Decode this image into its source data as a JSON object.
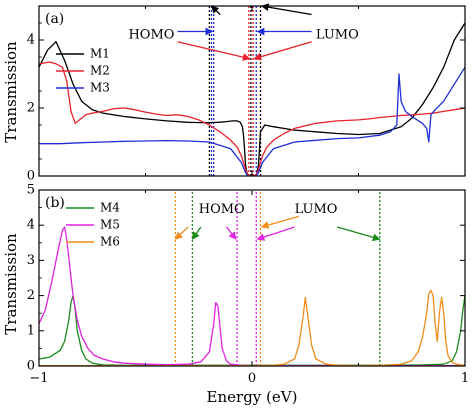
{
  "chart_data": [
    {
      "panel": "(a)",
      "type": "line",
      "xlabel": "",
      "ylabel": "Transmission",
      "xlim": [
        -1,
        1
      ],
      "ylim": [
        0,
        5
      ],
      "yticks": [
        0,
        2,
        4
      ],
      "grid": false,
      "legend_position": "left",
      "series": [
        {
          "name": "M1",
          "color": "#000000",
          "x": [
            -1,
            -0.96,
            -0.92,
            -0.88,
            -0.84,
            -0.8,
            -0.75,
            -0.7,
            -0.6,
            -0.5,
            -0.4,
            -0.3,
            -0.24,
            -0.2,
            -0.16,
            -0.12,
            -0.09,
            -0.07,
            -0.055,
            -0.045,
            -0.04,
            -0.035,
            -0.03,
            -0.02,
            -0.01,
            0,
            0.01,
            0.02,
            0.03,
            0.035,
            0.04,
            0.06,
            0.1,
            0.2,
            0.3,
            0.4,
            0.5,
            0.6,
            0.7,
            0.75,
            0.8,
            0.85,
            0.9,
            0.95,
            1
          ],
          "y": [
            3.2,
            3.7,
            3.95,
            3.4,
            2.7,
            2.2,
            1.95,
            1.85,
            1.75,
            1.68,
            1.62,
            1.58,
            1.57,
            1.57,
            1.58,
            1.6,
            1.62,
            1.62,
            1.58,
            1.45,
            1.2,
            0.8,
            0.3,
            0,
            0,
            0,
            0,
            0,
            0.3,
            0.8,
            1.3,
            1.5,
            1.45,
            1.35,
            1.3,
            1.25,
            1.22,
            1.25,
            1.45,
            1.7,
            2.1,
            2.6,
            3.2,
            4.0,
            4.5
          ]
        },
        {
          "name": "M2",
          "color": "#e8222c",
          "x": [
            -1,
            -0.95,
            -0.92,
            -0.89,
            -0.87,
            -0.85,
            -0.83,
            -0.81,
            -0.78,
            -0.75,
            -0.7,
            -0.65,
            -0.6,
            -0.55,
            -0.5,
            -0.45,
            -0.4,
            -0.35,
            -0.3,
            -0.25,
            -0.2,
            -0.15,
            -0.1,
            -0.07,
            -0.05,
            -0.035,
            -0.025,
            -0.015,
            0,
            0.015,
            0.025,
            0.035,
            0.05,
            0.07,
            0.1,
            0.15,
            0.2,
            0.3,
            0.4,
            0.5,
            0.55,
            0.6,
            0.65,
            0.7,
            0.75,
            0.8,
            0.85,
            0.9,
            0.95,
            1
          ],
          "y": [
            3.3,
            3.35,
            3.3,
            3.2,
            2.8,
            1.9,
            1.55,
            1.65,
            1.8,
            1.85,
            1.9,
            1.98,
            2.0,
            1.95,
            1.88,
            1.82,
            1.78,
            1.8,
            1.75,
            1.65,
            1.5,
            1.3,
            1.05,
            0.85,
            0.6,
            0.3,
            0.1,
            0.02,
            0,
            0.02,
            0.1,
            0.3,
            0.6,
            0.85,
            1.05,
            1.25,
            1.4,
            1.55,
            1.62,
            1.65,
            1.68,
            1.72,
            1.75,
            1.78,
            1.8,
            1.82,
            1.85,
            1.9,
            1.95,
            2.0
          ]
        },
        {
          "name": "M3",
          "color": "#1f2fd6",
          "x": [
            -1,
            -0.9,
            -0.8,
            -0.7,
            -0.6,
            -0.5,
            -0.4,
            -0.3,
            -0.2,
            -0.1,
            -0.05,
            -0.03,
            -0.02,
            0,
            0.02,
            0.03,
            0.05,
            0.1,
            0.2,
            0.3,
            0.4,
            0.5,
            0.6,
            0.65,
            0.68,
            0.69,
            0.7,
            0.72,
            0.75,
            0.8,
            0.82,
            0.83,
            0.84,
            0.86,
            0.9,
            0.95,
            1
          ],
          "y": [
            0.95,
            0.95,
            0.98,
            1.0,
            1.02,
            1.03,
            1.04,
            1.03,
            1.0,
            0.8,
            0.4,
            0.1,
            0,
            0,
            0,
            0.1,
            0.4,
            0.8,
            1.0,
            1.05,
            1.1,
            1.12,
            1.2,
            1.3,
            1.5,
            3.0,
            2.2,
            1.9,
            1.75,
            1.55,
            1.4,
            1.0,
            1.8,
            1.95,
            2.2,
            2.7,
            3.2
          ]
        }
      ],
      "vlines": [
        {
          "x": -0.2,
          "color": "#000000"
        },
        {
          "x": -0.19,
          "color": "#1f2fd6"
        },
        {
          "x": -0.18,
          "color": "#1f2fd6"
        },
        {
          "x": -0.015,
          "color": "#e8222c"
        },
        {
          "x": -0.005,
          "color": "#000000"
        },
        {
          "x": 0.005,
          "color": "#e8222c"
        },
        {
          "x": 0.02,
          "color": "#1f2fd6"
        },
        {
          "x": 0.04,
          "color": "#000000"
        }
      ],
      "annotations": [
        {
          "text": "HOMO",
          "x": -0.58,
          "y": 4.15
        },
        {
          "text": "LUMO",
          "x": 0.3,
          "y": 4.15
        }
      ],
      "arrows": [
        {
          "from": [
            -0.15,
            4.75
          ],
          "to": [
            -0.19,
            5.0
          ],
          "color": "#000000"
        },
        {
          "from": [
            -0.35,
            4.25
          ],
          "to": [
            -0.185,
            4.25
          ],
          "color": "#1f2fd6"
        },
        {
          "from": [
            -0.35,
            3.95
          ],
          "to": [
            -0.01,
            3.45
          ],
          "color": "#e8222c"
        },
        {
          "from": [
            0.28,
            4.75
          ],
          "to": [
            0.045,
            5.0
          ],
          "color": "#000000"
        },
        {
          "from": [
            0.28,
            4.25
          ],
          "to": [
            0.025,
            4.25
          ],
          "color": "#1f2fd6"
        },
        {
          "from": [
            0.28,
            3.95
          ],
          "to": [
            0.01,
            3.45
          ],
          "color": "#e8222c"
        }
      ]
    },
    {
      "panel": "(b)",
      "type": "line",
      "xlabel": "Energy (eV)",
      "ylabel": "Transmission",
      "xlim": [
        -1,
        1
      ],
      "ylim": [
        0,
        5
      ],
      "xticks": [
        -1,
        0,
        1
      ],
      "yticks": [
        0,
        1,
        2,
        3,
        4,
        5
      ],
      "grid": false,
      "legend_position": "left",
      "series": [
        {
          "name": "M4",
          "color": "#1a8a1a",
          "x": [
            -1,
            -0.95,
            -0.9,
            -0.88,
            -0.86,
            -0.85,
            -0.84,
            -0.83,
            -0.82,
            -0.8,
            -0.78,
            -0.75,
            -0.7,
            -0.6,
            -0.4,
            -0.2,
            0,
            0.2,
            0.4,
            0.6,
            0.8,
            0.9,
            0.94,
            0.96,
            0.98,
            0.99,
            1
          ],
          "y": [
            0.2,
            0.25,
            0.45,
            0.7,
            1.3,
            1.8,
            2.0,
            1.6,
            1.0,
            0.45,
            0.2,
            0.08,
            0.03,
            0.02,
            0.02,
            0.02,
            0.02,
            0.02,
            0.02,
            0.02,
            0.03,
            0.05,
            0.15,
            0.4,
            1.0,
            1.6,
            2.0
          ]
        },
        {
          "name": "M5",
          "color": "#e023e0",
          "x": [
            -1,
            -0.97,
            -0.94,
            -0.91,
            -0.89,
            -0.88,
            -0.87,
            -0.86,
            -0.85,
            -0.84,
            -0.82,
            -0.8,
            -0.77,
            -0.74,
            -0.7,
            -0.65,
            -0.6,
            -0.5,
            -0.4,
            -0.3,
            -0.24,
            -0.2,
            -0.18,
            -0.17,
            -0.16,
            -0.15,
            -0.14,
            -0.12,
            -0.1,
            -0.05,
            0,
            0.2,
            0.4,
            0.6,
            0.8,
            1
          ],
          "y": [
            1.2,
            1.6,
            2.4,
            3.3,
            3.85,
            3.95,
            3.6,
            3.1,
            2.5,
            2.0,
            1.3,
            0.85,
            0.5,
            0.3,
            0.2,
            0.12,
            0.08,
            0.05,
            0.04,
            0.05,
            0.12,
            0.4,
            1.2,
            1.8,
            1.7,
            1.1,
            0.5,
            0.15,
            0.05,
            0.02,
            0.01,
            0.01,
            0.01,
            0.01,
            0.01,
            0.01
          ]
        },
        {
          "name": "M6",
          "color": "#f28c1a",
          "x": [
            -1,
            -0.5,
            0,
            0.1,
            0.15,
            0.2,
            0.22,
            0.24,
            0.25,
            0.26,
            0.28,
            0.3,
            0.35,
            0.4,
            0.5,
            0.6,
            0.7,
            0.75,
            0.78,
            0.8,
            0.82,
            0.83,
            0.84,
            0.85,
            0.86,
            0.87,
            0.88,
            0.89,
            0.9,
            0.91,
            0.92,
            0.94,
            0.96,
            0.98,
            1
          ],
          "y": [
            0.01,
            0.01,
            0.01,
            0.02,
            0.05,
            0.2,
            0.6,
            1.4,
            1.95,
            1.5,
            0.6,
            0.2,
            0.05,
            0.02,
            0.01,
            0.02,
            0.05,
            0.15,
            0.4,
            0.8,
            1.5,
            2.05,
            2.15,
            2.0,
            1.2,
            0.7,
            1.5,
            1.95,
            1.5,
            0.7,
            0.3,
            0.1,
            0.05,
            0.03,
            0.02
          ]
        }
      ],
      "vlines": [
        {
          "x": -0.36,
          "color": "#f28c1a"
        },
        {
          "x": -0.28,
          "color": "#1a8a1a"
        },
        {
          "x": -0.07,
          "color": "#e023e0"
        },
        {
          "x": 0.02,
          "color": "#e023e0"
        },
        {
          "x": 0.04,
          "color": "#f28c1a"
        },
        {
          "x": 0.6,
          "color": "#1a8a1a"
        }
      ],
      "annotations": [
        {
          "text": "HOMO",
          "x": -0.25,
          "y": 4.45
        },
        {
          "text": "LUMO",
          "x": 0.2,
          "y": 4.45
        }
      ],
      "arrows": [
        {
          "from": [
            -0.3,
            3.95
          ],
          "to": [
            -0.36,
            3.6
          ],
          "color": "#f28c1a"
        },
        {
          "from": [
            -0.24,
            3.95
          ],
          "to": [
            -0.28,
            3.6
          ],
          "color": "#1a8a1a"
        },
        {
          "from": [
            -0.12,
            3.95
          ],
          "to": [
            -0.075,
            3.6
          ],
          "color": "#e023e0"
        },
        {
          "from": [
            0.22,
            4.25
          ],
          "to": [
            0.045,
            3.95
          ],
          "color": "#f28c1a"
        },
        {
          "from": [
            0.2,
            3.95
          ],
          "to": [
            0.025,
            3.6
          ],
          "color": "#e023e0"
        },
        {
          "from": [
            0.4,
            3.95
          ],
          "to": [
            0.6,
            3.6
          ],
          "color": "#1a8a1a"
        }
      ]
    }
  ]
}
